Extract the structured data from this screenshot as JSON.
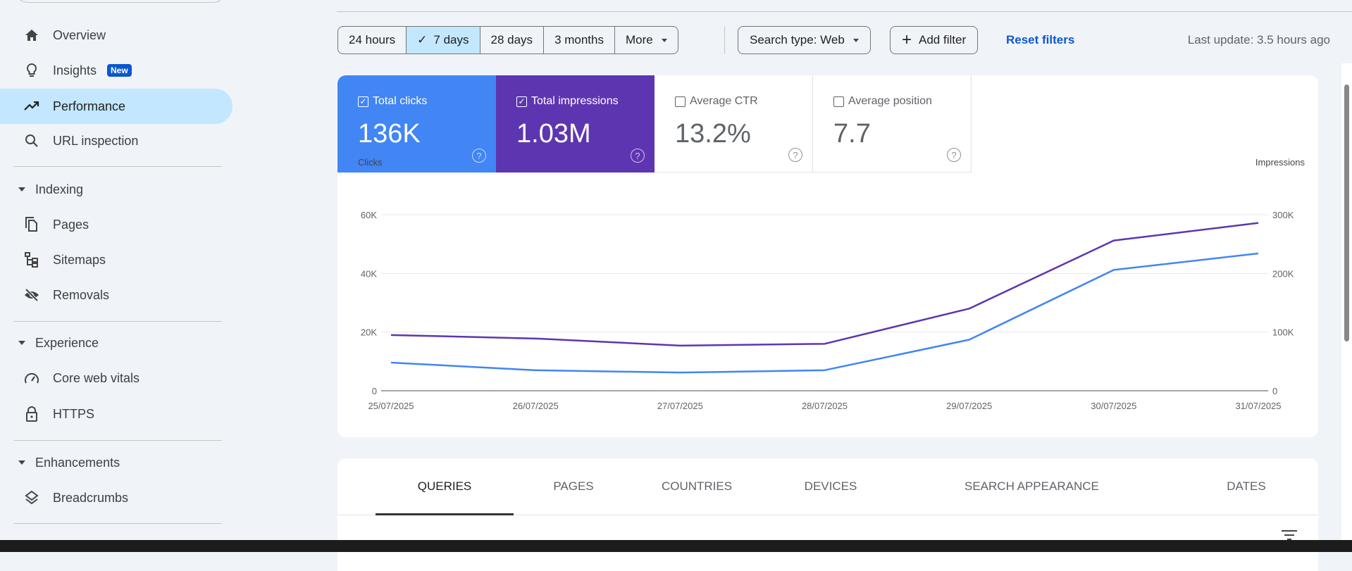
{
  "sidebar": {
    "items": [
      {
        "label": "Overview",
        "icon": "home-icon"
      },
      {
        "label": "Insights",
        "icon": "lightbulb-icon",
        "badge": "New"
      },
      {
        "label": "Performance",
        "icon": "trending-up-icon",
        "active": true
      },
      {
        "label": "URL inspection",
        "icon": "search-icon"
      }
    ],
    "sections": [
      {
        "label": "Indexing",
        "items": [
          {
            "label": "Pages",
            "icon": "pages-icon"
          },
          {
            "label": "Sitemaps",
            "icon": "sitemap-icon"
          },
          {
            "label": "Removals",
            "icon": "eye-off-icon"
          }
        ]
      },
      {
        "label": "Experience",
        "items": [
          {
            "label": "Core web vitals",
            "icon": "gauge-icon"
          },
          {
            "label": "HTTPS",
            "icon": "lock-icon"
          }
        ]
      },
      {
        "label": "Enhancements",
        "items": [
          {
            "label": "Breadcrumbs",
            "icon": "layers-icon"
          }
        ]
      }
    ]
  },
  "filters": {
    "ranges": [
      "24 hours",
      "7 days",
      "28 days",
      "3 months",
      "More"
    ],
    "selected_range": "7 days",
    "search_type": "Search type: Web",
    "add_filter": "Add filter",
    "reset": "Reset filters",
    "last_update": "Last update: 3.5 hours ago"
  },
  "metrics": [
    {
      "label": "Total clicks",
      "value": "136K",
      "checked": true,
      "color": "#4285f4"
    },
    {
      "label": "Total impressions",
      "value": "1.03M",
      "checked": true,
      "color": "#5e35b1"
    },
    {
      "label": "Average CTR",
      "value": "13.2%",
      "checked": false
    },
    {
      "label": "Average position",
      "value": "7.7",
      "checked": false
    }
  ],
  "chart_data": {
    "type": "line",
    "categories": [
      "25/07/2025",
      "26/07/2025",
      "27/07/2025",
      "28/07/2025",
      "29/07/2025",
      "30/07/2025",
      "31/07/2025"
    ],
    "ylabel_left": "Clicks",
    "ylabel_right": "Impressions",
    "ylim_left": [
      0,
      60000
    ],
    "ylim_right": [
      0,
      300000
    ],
    "yticks_left": [
      "0",
      "20K",
      "40K",
      "60K"
    ],
    "yticks_right": [
      "0",
      "100K",
      "200K",
      "300K"
    ],
    "grid": true,
    "series": [
      {
        "name": "Clicks",
        "axis": "left",
        "color": "#4285f4",
        "values": [
          9600,
          7000,
          6200,
          7000,
          17400,
          41200,
          46800
        ]
      },
      {
        "name": "Impressions",
        "axis": "right",
        "color": "#5e35b1",
        "values": [
          95000,
          89000,
          77000,
          80000,
          140000,
          256000,
          286000
        ]
      }
    ]
  },
  "tabs": [
    "QUERIES",
    "PAGES",
    "COUNTRIES",
    "DEVICES",
    "SEARCH APPEARANCE",
    "DATES"
  ],
  "active_tab": "QUERIES"
}
